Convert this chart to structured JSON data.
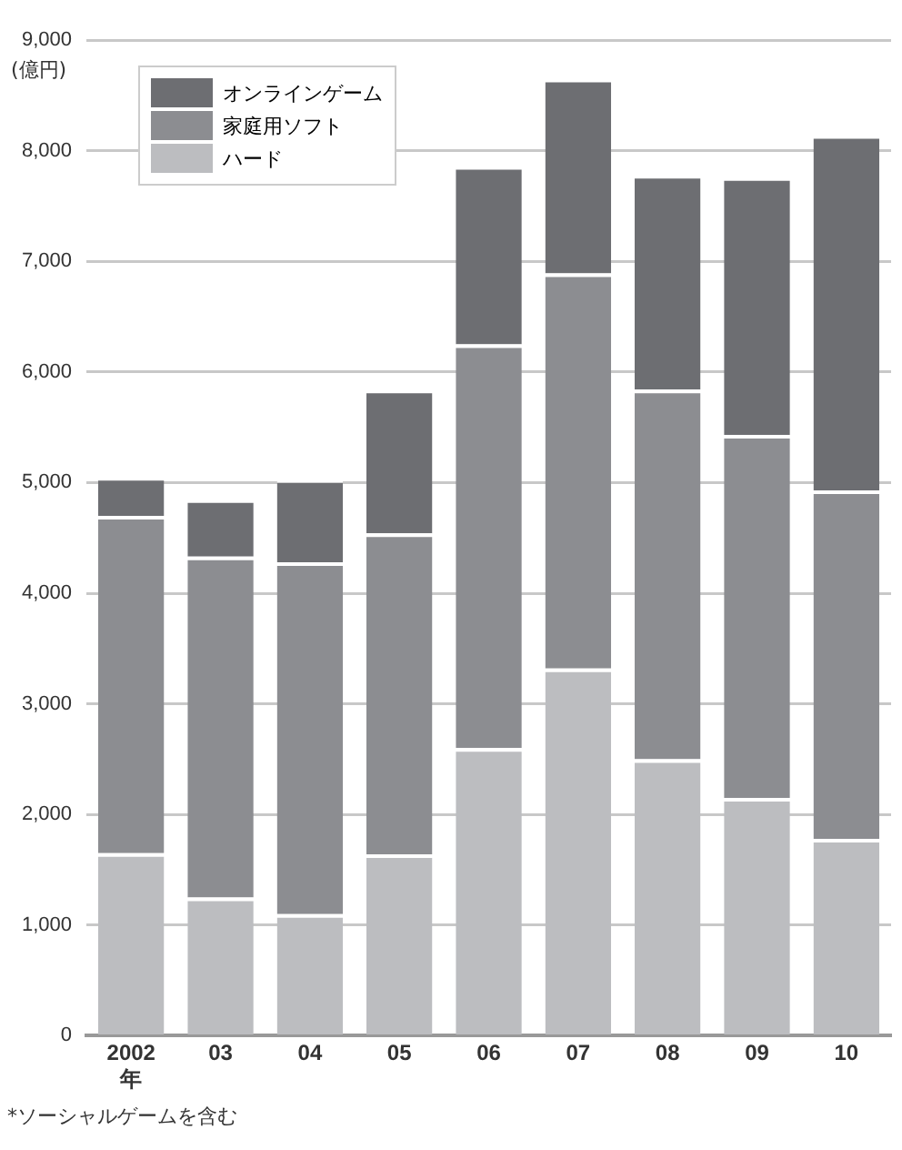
{
  "chart_data": {
    "type": "bar",
    "stacked": true,
    "ylabel": "(億円)",
    "categories": [
      "2002\n年",
      "03",
      "04",
      "05",
      "06",
      "07",
      "08",
      "09",
      "10"
    ],
    "series": [
      {
        "name": "ハード",
        "color": "#bcbdc0",
        "values": [
          1650,
          1250,
          1100,
          1640,
          2600,
          3320,
          2500,
          2150,
          1780
        ]
      },
      {
        "name": "家庭用ソフト",
        "color": "#8c8d91",
        "values": [
          3050,
          3080,
          3180,
          2900,
          3650,
          3570,
          3340,
          3280,
          3150
        ]
      },
      {
        "name": "オンラインゲーム",
        "color": "#6d6e72",
        "values": [
          350,
          520,
          750,
          1300,
          1610,
          1760,
          1940,
          2330,
          3210
        ]
      }
    ],
    "ylim": [
      0,
      9000
    ],
    "yticks": [
      {
        "value": 0,
        "label": "0"
      },
      {
        "value": 1000,
        "label": "1,000"
      },
      {
        "value": 2000,
        "label": "2,000"
      },
      {
        "value": 3000,
        "label": "3,000"
      },
      {
        "value": 4000,
        "label": "4,000"
      },
      {
        "value": 5000,
        "label": "5,000"
      },
      {
        "value": 6000,
        "label": "6,000"
      },
      {
        "value": 7000,
        "label": "7,000"
      },
      {
        "value": 8000,
        "label": "8,000"
      },
      {
        "value": 9000,
        "label": "9,000"
      }
    ],
    "grid": "y",
    "legend": "top left",
    "annotations": [
      "*ソーシャルゲームを含む"
    ]
  }
}
